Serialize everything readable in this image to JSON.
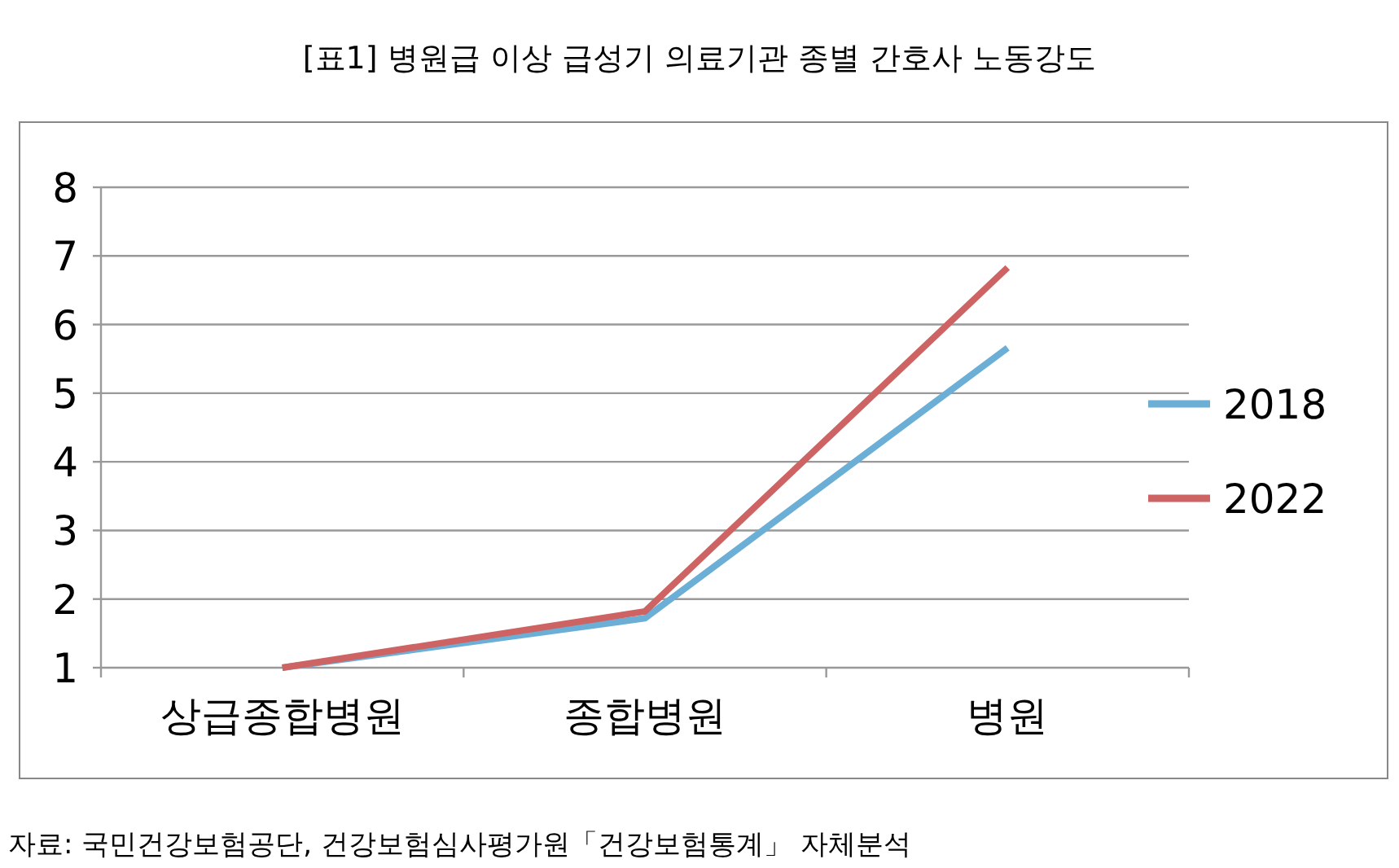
{
  "chart_data": {
    "type": "line",
    "title": "[표1] 병원급 이상 급성기 의료기관 종별 간호사 노동강도",
    "categories": [
      "상급종합병원",
      "종합병원",
      "병원"
    ],
    "series": [
      {
        "name": "2018",
        "color": "#6baed6",
        "values": [
          1.0,
          1.72,
          5.66
        ]
      },
      {
        "name": "2022",
        "color": "#cd6363",
        "values": [
          1.0,
          1.82,
          6.83
        ]
      }
    ],
    "ylim": [
      1,
      8
    ],
    "yticks": [
      1,
      2,
      3,
      4,
      5,
      6,
      7,
      8
    ],
    "grid": "y",
    "legend": "right",
    "marker": "none",
    "line_style": "solid",
    "annotations": [
      "자료: 국민건강보험공단, 건강보험심사평가원「건강보험통계」 자체분석"
    ]
  }
}
